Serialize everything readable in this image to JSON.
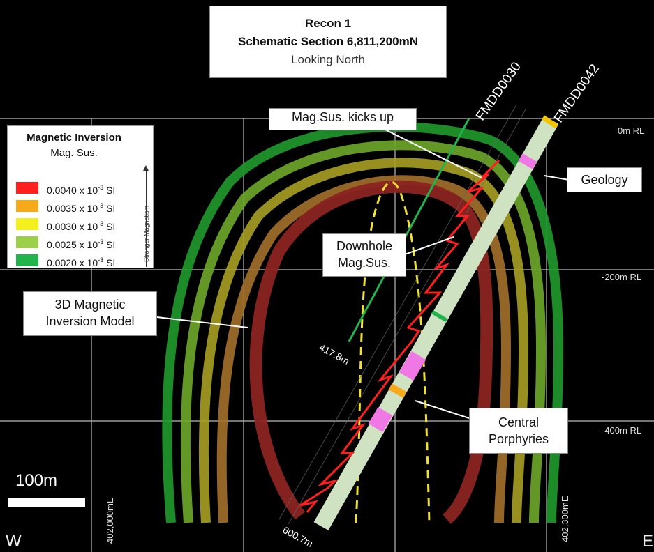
{
  "title": {
    "line1": "Recon 1",
    "line2": "Schematic Section 6,811,200mN",
    "line3": "Looking North"
  },
  "legend": {
    "title": "Magnetic Inversion",
    "subtitle": "Mag. Sus.",
    "unit_prefix": "x 10",
    "unit_exp": "-3",
    "unit_suffix": "SI",
    "entries": [
      {
        "value": "0.0040",
        "color": "#ff1f1f"
      },
      {
        "value": "0.0035",
        "color": "#f7a91c"
      },
      {
        "value": "0.0030",
        "color": "#f4f01e"
      },
      {
        "value": "0.0025",
        "color": "#9cd04a"
      },
      {
        "value": "0.0020",
        "color": "#22b34c"
      }
    ],
    "arrow_label": "Stronger Magnetism"
  },
  "callouts": {
    "magsus_kicks": "Mag.Sus. kicks up",
    "geology": "Geology",
    "downhole_1": "Downhole",
    "downhole_2": "Mag.Sus.",
    "inversion_1": "3D Magnetic",
    "inversion_2": "Inversion Model",
    "porph_1": "Central",
    "porph_2": "Porphyries"
  },
  "rl_labels": {
    "r0": "0m RL",
    "r200": "-200m RL",
    "r400": "-400m RL"
  },
  "coords": {
    "west": "402,000mE",
    "east": "402,300mE"
  },
  "drillholes": {
    "hole1": "FMDD0030",
    "hole2": "FMDD0042"
  },
  "depths": {
    "hole1_end": "417.8m",
    "hole2_end": "600.7m"
  },
  "scale": {
    "label": "100m"
  },
  "directions": {
    "west": "W",
    "east": "E"
  }
}
